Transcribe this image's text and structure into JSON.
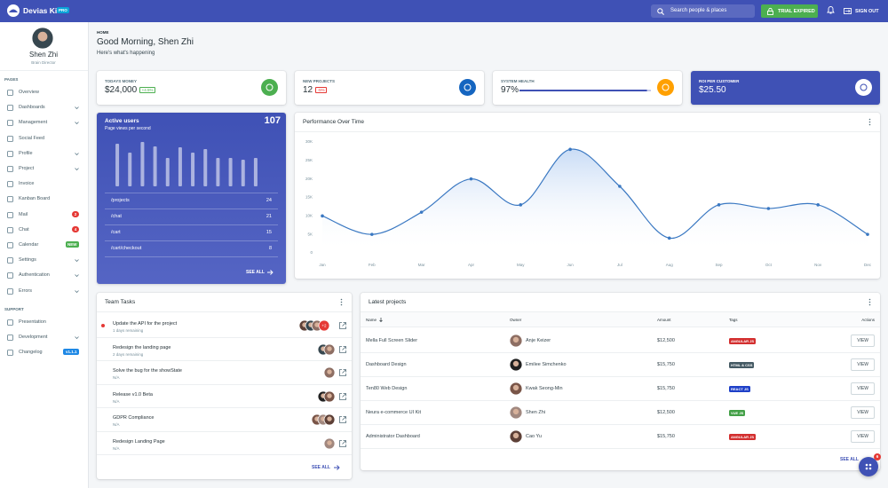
{
  "topbar": {
    "brand": "Devias Kit",
    "badge": "PRO",
    "search": "Search people & places",
    "trial": "TRIAL EXPIRED",
    "signout": "SIGN OUT"
  },
  "sidebar": {
    "user": {
      "name": "Shen Zhi",
      "role": "Brain Director"
    },
    "sections": [
      {
        "title": "PAGES",
        "items": [
          {
            "label": "Overview"
          },
          {
            "label": "Dashboards",
            "expandable": true
          },
          {
            "label": "Management",
            "expandable": true
          },
          {
            "label": "Social Feed"
          },
          {
            "label": "Profile",
            "expandable": true
          },
          {
            "label": "Project",
            "expandable": true
          },
          {
            "label": "Invoice"
          },
          {
            "label": "Kanban Board"
          },
          {
            "label": "Mail",
            "badge": "2",
            "badge_color": "#e53935"
          },
          {
            "label": "Chat",
            "badge": "4",
            "badge_color": "#e53935"
          },
          {
            "label": "Calendar",
            "badge": "NEW",
            "badge_color": "#4caf50"
          },
          {
            "label": "Settings",
            "expandable": true
          },
          {
            "label": "Authentication",
            "expandable": true
          },
          {
            "label": "Errors",
            "expandable": true
          }
        ]
      },
      {
        "title": "SUPPORT",
        "items": [
          {
            "label": "Presentation"
          },
          {
            "label": "Development",
            "expandable": true
          },
          {
            "label": "Changelog",
            "badge": "v1.1.1",
            "badge_color": "#1e88e5"
          }
        ]
      }
    ]
  },
  "header": {
    "breadcrumb": "HOME",
    "greeting": "Good Morning, Shen Zhi",
    "subtitle": "Here's what's happening"
  },
  "stats": [
    {
      "label": "TODAYS MONEY",
      "value": "$24,000",
      "change": "+4.5%",
      "change_color": "#4caf50",
      "icon_color": "#4caf50"
    },
    {
      "label": "NEW PROJECTS",
      "value": "12",
      "change": "-5%",
      "change_color": "#e53935",
      "icon_color": "#1565c0"
    },
    {
      "label": "SYSTEM HEALTH",
      "value": "97%",
      "progress": 97,
      "icon_color": "#ffa000"
    },
    {
      "label": "ROI PER CUSTOMER",
      "value": "$25.50",
      "icon_color": "#ffffff"
    }
  ],
  "active_users": {
    "title": "Active users",
    "subtitle": "Page views per second",
    "count": "107",
    "pages": [
      {
        "path": "/projects",
        "views": "24"
      },
      {
        "path": "/chat",
        "views": "21"
      },
      {
        "path": "/cart",
        "views": "15"
      },
      {
        "path": "/cart/checkout",
        "views": "8"
      }
    ],
    "see_all": "SEE ALL"
  },
  "chart_data": [
    {
      "type": "line",
      "title": "Performance Over Time",
      "categories": [
        "Jan",
        "Feb",
        "Mar",
        "Apr",
        "May",
        "Jun",
        "Jul",
        "Aug",
        "Sep",
        "Oct",
        "Nov",
        "Dec"
      ],
      "series": [
        {
          "name": "Performance",
          "color": "#3a78c2",
          "values": [
            10000,
            5000,
            11000,
            20000,
            13000,
            28000,
            18000,
            4000,
            13000,
            12000,
            13000,
            5000
          ]
        }
      ],
      "ylim": [
        0,
        30000
      ],
      "yticks": [
        0,
        {
          "value": 5000,
          "label": "5K"
        },
        {
          "value": 10000,
          "label": "10K"
        },
        {
          "value": 15000,
          "label": "15K"
        },
        {
          "value": 20000,
          "label": "20K"
        },
        {
          "value": 25000,
          "label": "25K"
        },
        {
          "value": 30000,
          "label": "30K"
        }
      ],
      "grid": false
    },
    {
      "type": "bar",
      "values": [
        48,
        38,
        50,
        45,
        32,
        44,
        38,
        42,
        32,
        32,
        30,
        32
      ],
      "color": "rgba(255,255,255,0.55)"
    }
  ],
  "team_tasks": {
    "title": "Team Tasks",
    "tasks": [
      {
        "title": "Update the API for the project",
        "due": "1 days remaining",
        "extra": "+2",
        "urgent": true
      },
      {
        "title": "Redesign the landing page",
        "due": "2 days remaining"
      },
      {
        "title": "Solve the bug for the showState",
        "due": "N/A"
      },
      {
        "title": "Release v1.0 Beta",
        "due": "N/A"
      },
      {
        "title": "GDPR Compliance",
        "due": "N/A"
      },
      {
        "title": "Redesign Landing Page",
        "due": "N/A"
      }
    ],
    "see_all": "SEE ALL"
  },
  "latest_projects": {
    "title": "Latest projects",
    "columns": [
      "Name",
      "Owner",
      "Amount",
      "Tags",
      "Actions"
    ],
    "rows": [
      {
        "name": "Mella Full Screen Slider",
        "owner": "Anje Keizer",
        "amount": "$12,500",
        "tag": "ANGULAR JS",
        "tag_color": "#d32f2f",
        "action": "VIEW"
      },
      {
        "name": "Dashboard Design",
        "owner": "Emilee Simchenko",
        "amount": "$15,750",
        "tag": "HTML & CSS",
        "tag_color": "#455a64",
        "action": "VIEW"
      },
      {
        "name": "Ten80 Web Design",
        "owner": "Kwak Seong-Min",
        "amount": "$15,750",
        "tag": "REACT JS",
        "tag_color": "#1e40c8",
        "action": "VIEW"
      },
      {
        "name": "Neura e-commerce UI Kit",
        "owner": "Shen Zhi",
        "amount": "$12,500",
        "tag": "VUE JS",
        "tag_color": "#43a047",
        "action": "VIEW"
      },
      {
        "name": "Administrator Dashboard",
        "owner": "Cao Yu",
        "amount": "$15,750",
        "tag": "ANGULAR JS",
        "tag_color": "#d32f2f",
        "action": "VIEW"
      }
    ],
    "see_all": "SEE ALL"
  },
  "fab_badge": "6"
}
